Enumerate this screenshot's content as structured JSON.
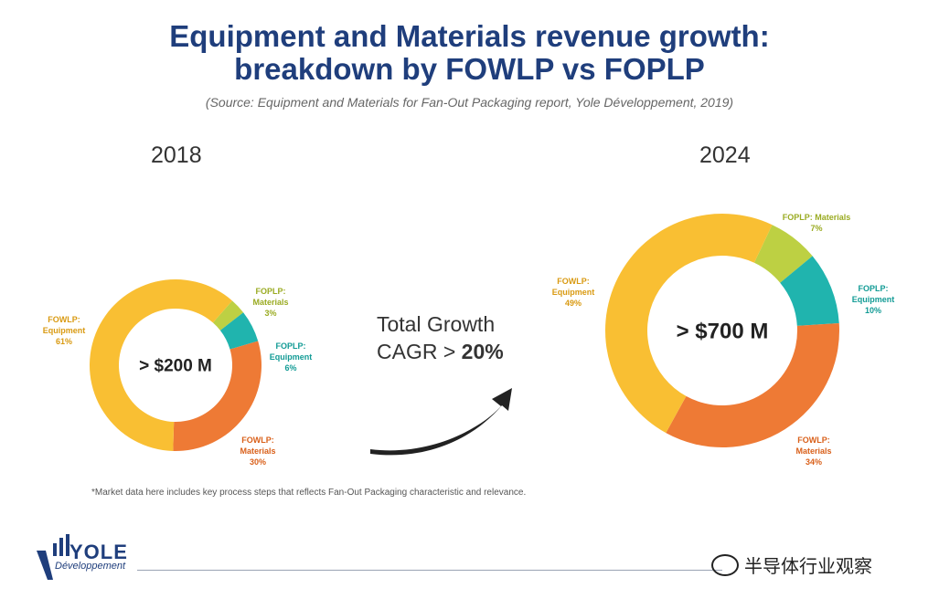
{
  "title": {
    "line1": "Equipment and Materials revenue growth:",
    "line2": "breakdown by FOWLP vs FOPLP"
  },
  "source": "(Source: Equipment and Materials for Fan-Out Packaging report, Yole Développement, 2019)",
  "growth": {
    "line1": "Total Growth",
    "line2_prefix": "CAGR > ",
    "line2_value": "20%"
  },
  "footnote": "*Market data here includes key process steps that reflects Fan-Out Packaging characteristic and relevance.",
  "logo": {
    "name": "YOLE",
    "sub": "Développement"
  },
  "watermark": "半导体行业观察",
  "colors": {
    "fowlp_equipment": "#f9bf33",
    "fowlp_materials": "#ee7a35",
    "foplp_equipment": "#20b4ae",
    "foplp_materials": "#bdd043",
    "title": "#1f3e7c"
  },
  "chart_data": [
    {
      "type": "pie",
      "year": "2018",
      "center_label": "> $200 M",
      "slices": [
        {
          "name": "FOWLP: Equipment",
          "label_lines": [
            "FOWLP:",
            "Equipment"
          ],
          "value": 61,
          "label": "61%",
          "color": "#f9bf33"
        },
        {
          "name": "FOPLP: Materials",
          "label_lines": [
            "FOPLP:",
            "Materials"
          ],
          "value": 3,
          "label": "3%",
          "color": "#bdd043"
        },
        {
          "name": "FOPLP: Equipment",
          "label_lines": [
            "FOPLP:",
            "Equipment"
          ],
          "value": 6,
          "label": "6%",
          "color": "#20b4ae"
        },
        {
          "name": "FOWLP: Materials",
          "label_lines": [
            "FOWLP:",
            "Materials"
          ],
          "value": 30,
          "label": "30%",
          "color": "#ee7a35"
        }
      ]
    },
    {
      "type": "pie",
      "year": "2024",
      "center_label": "> $700 M",
      "slices": [
        {
          "name": "FOWLP: Equipment",
          "label_lines": [
            "FOWLP:",
            "Equipment"
          ],
          "value": 49,
          "label": "49%",
          "color": "#f9bf33"
        },
        {
          "name": "FOPLP: Materials",
          "label_lines": [
            "FOPLP: Materials"
          ],
          "value": 7,
          "label": "7%",
          "color": "#bdd043"
        },
        {
          "name": "FOPLP: Equipment",
          "label_lines": [
            "FOPLP:",
            "Equipment"
          ],
          "value": 10,
          "label": "10%",
          "color": "#20b4ae"
        },
        {
          "name": "FOWLP: Materials",
          "label_lines": [
            "FOWLP:",
            "Materials"
          ],
          "value": 34,
          "label": "34%",
          "color": "#ee7a35"
        }
      ]
    }
  ]
}
